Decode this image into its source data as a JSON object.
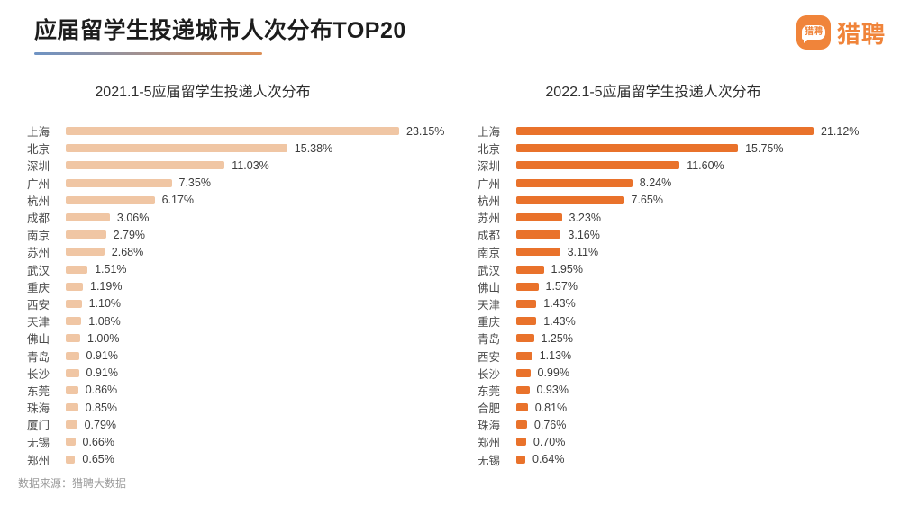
{
  "header": {
    "title": "应届留学生投递城市人次分布TOP20"
  },
  "logo": {
    "icon_text": "猎聘",
    "text": "猎聘",
    "color": "#F0843A"
  },
  "colors": {
    "underline_gradient_start": "#6E93C4",
    "underline_gradient_end": "#DD8F55",
    "left_bar": "#F0C6A4",
    "right_bar": "#E9722B"
  },
  "chart_data": [
    {
      "type": "bar",
      "orientation": "horizontal",
      "title": "2021.1-5应届留学生投递人次分布",
      "xlabel": "",
      "ylabel": "",
      "xlim": [
        0,
        25
      ],
      "grid": false,
      "bar_color": "#F0C6A4",
      "categories": [
        "上海",
        "北京",
        "深圳",
        "广州",
        "杭州",
        "成都",
        "南京",
        "苏州",
        "武汉",
        "重庆",
        "西安",
        "天津",
        "佛山",
        "青岛",
        "长沙",
        "东莞",
        "珠海",
        "厦门",
        "无锡",
        "郑州"
      ],
      "values": [
        23.15,
        15.38,
        11.03,
        7.35,
        6.17,
        3.06,
        2.79,
        2.68,
        1.51,
        1.19,
        1.1,
        1.08,
        1.0,
        0.91,
        0.91,
        0.86,
        0.85,
        0.79,
        0.66,
        0.65
      ],
      "labels": [
        "23.15%",
        "15.38%",
        "11.03%",
        "7.35%",
        "6.17%",
        "3.06%",
        "2.79%",
        "2.68%",
        "1.51%",
        "1.19%",
        "1.10%",
        "1.08%",
        "1.00%",
        "0.91%",
        "0.91%",
        "0.86%",
        "0.85%",
        "0.79%",
        "0.66%",
        "0.65%"
      ]
    },
    {
      "type": "bar",
      "orientation": "horizontal",
      "title": "2022.1-5应届留学生投递人次分布",
      "xlabel": "",
      "ylabel": "",
      "xlim": [
        0,
        23
      ],
      "grid": false,
      "bar_color": "#E9722B",
      "categories": [
        "上海",
        "北京",
        "深圳",
        "广州",
        "杭州",
        "苏州",
        "成都",
        "南京",
        "武汉",
        "佛山",
        "天津",
        "重庆",
        "青岛",
        "西安",
        "长沙",
        "东莞",
        "合肥",
        "珠海",
        "郑州",
        "无锡"
      ],
      "values": [
        21.12,
        15.75,
        11.6,
        8.24,
        7.65,
        3.23,
        3.16,
        3.11,
        1.95,
        1.57,
        1.43,
        1.43,
        1.25,
        1.13,
        0.99,
        0.93,
        0.81,
        0.76,
        0.7,
        0.64
      ],
      "labels": [
        "21.12%",
        "15.75%",
        "11.60%",
        "8.24%",
        "7.65%",
        "3.23%",
        "3.16%",
        "3.11%",
        "1.95%",
        "1.57%",
        "1.43%",
        "1.43%",
        "1.25%",
        "1.13%",
        "0.99%",
        "0.93%",
        "0.81%",
        "0.76%",
        "0.70%",
        "0.64%"
      ]
    }
  ],
  "footer": {
    "source": "数据来源：猎聘大数据"
  }
}
